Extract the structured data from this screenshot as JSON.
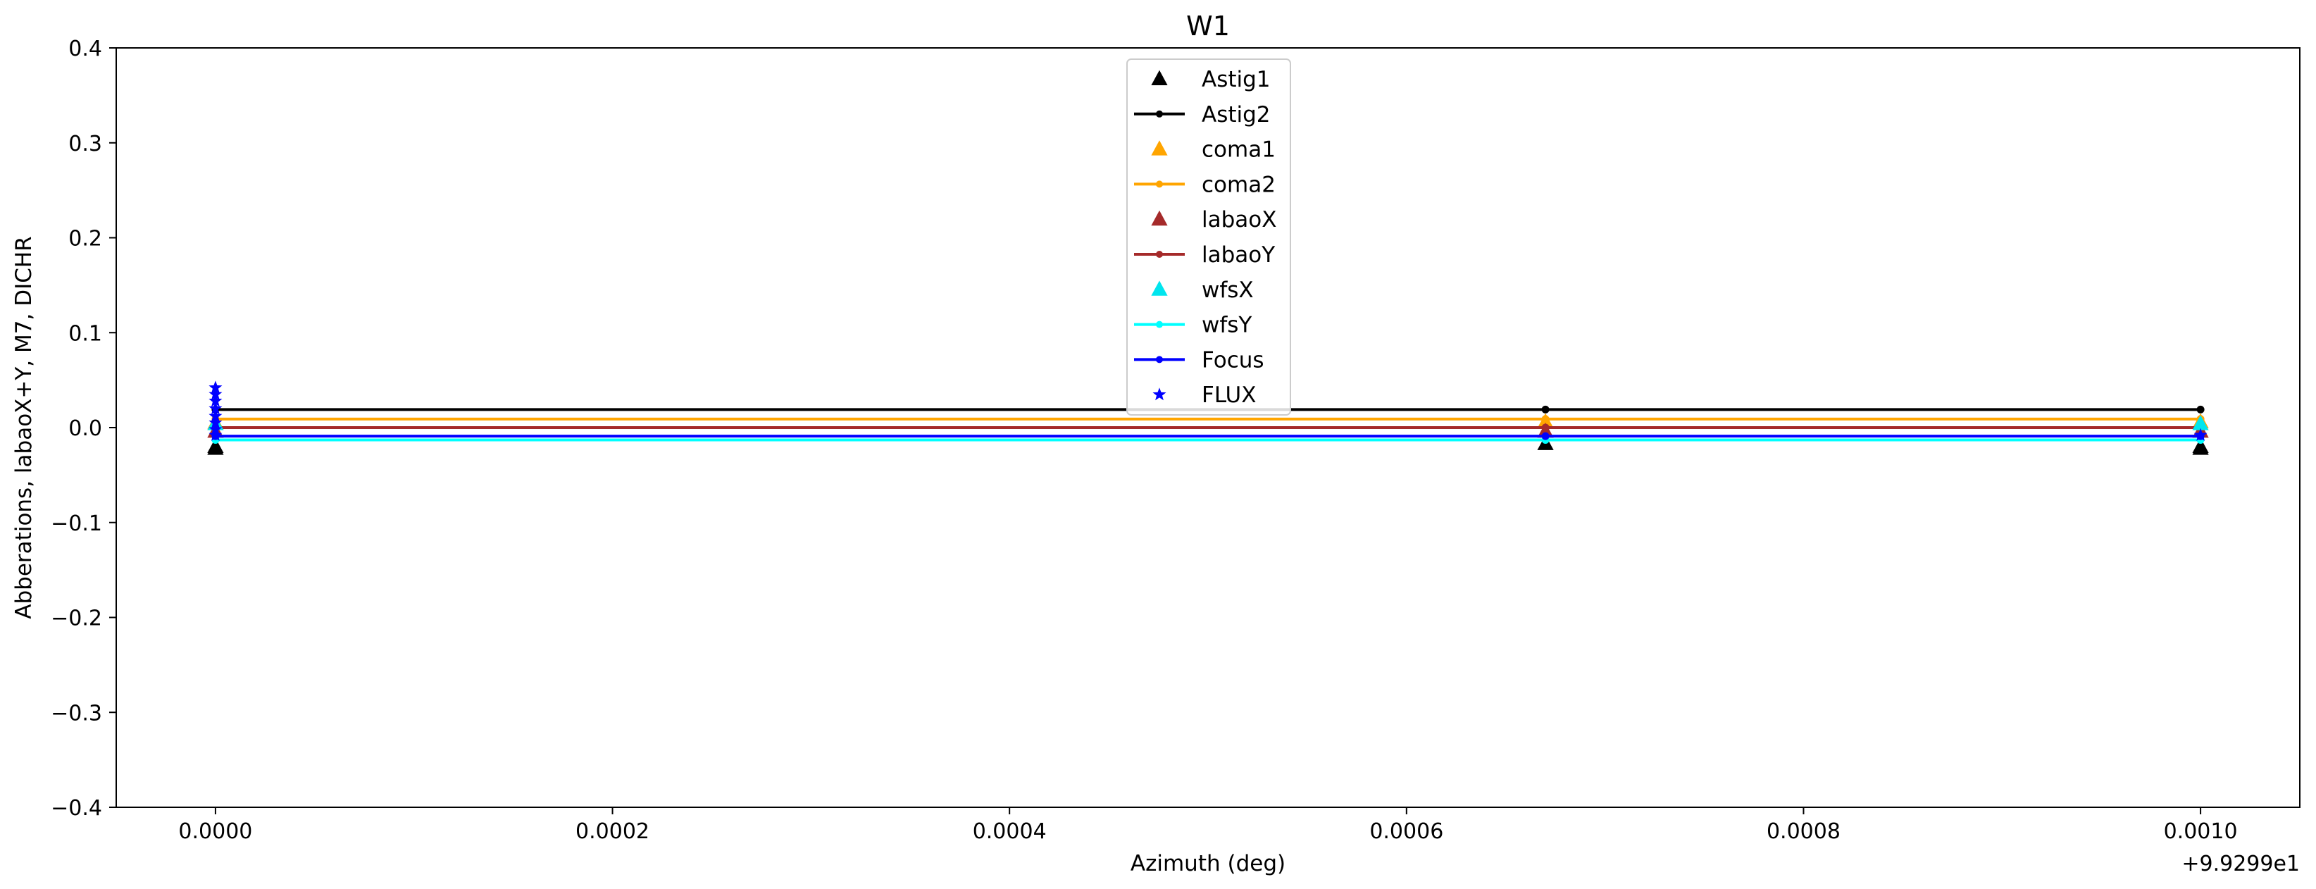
{
  "chart_data": {
    "type": "line",
    "title": "W1",
    "xlabel": "Azimuth (deg)",
    "ylabel": "Abberations, labaoX+Y, M7, DICHR",
    "x_offset_label": "+9.9299e1",
    "xlim": [
      -5e-05,
      0.00105
    ],
    "ylim": [
      -0.4,
      0.4
    ],
    "xticks": [
      0.0,
      0.0002,
      0.0004,
      0.0006,
      0.0008,
      0.001
    ],
    "xtick_labels": [
      "0.0000",
      "0.0002",
      "0.0004",
      "0.0006",
      "0.0008",
      "0.0010"
    ],
    "yticks": [
      -0.4,
      -0.3,
      -0.2,
      -0.1,
      0.0,
      0.1,
      0.2,
      0.3,
      0.4
    ],
    "ytick_labels": [
      "−0.4",
      "−0.3",
      "−0.2",
      "−0.1",
      "0.0",
      "0.1",
      "0.2",
      "0.3",
      "0.4"
    ],
    "legend_position": "upper-center",
    "series": [
      {
        "name": "Astig1",
        "style": "marker",
        "marker": "triangle",
        "color": "#000000",
        "points": [
          [
            0.0,
            -0.022
          ],
          [
            0.0,
            -0.02
          ],
          [
            0.00067,
            -0.017
          ],
          [
            0.001,
            -0.022
          ],
          [
            0.001,
            -0.02
          ]
        ]
      },
      {
        "name": "Astig2",
        "style": "line",
        "marker": "dot",
        "color": "#000000",
        "points": [
          [
            0.0,
            0.019
          ],
          [
            0.00067,
            0.019
          ],
          [
            0.001,
            0.019
          ]
        ]
      },
      {
        "name": "coma1",
        "style": "marker",
        "marker": "triangle",
        "color": "#FFA500",
        "points": [
          [
            0.0,
            0.005
          ],
          [
            0.00067,
            0.006
          ],
          [
            0.001,
            0.006
          ]
        ]
      },
      {
        "name": "coma2",
        "style": "line",
        "marker": "dot",
        "color": "#FFA500",
        "points": [
          [
            0.0,
            0.009
          ],
          [
            0.00067,
            0.009
          ],
          [
            0.001,
            0.009
          ]
        ]
      },
      {
        "name": "labaoX",
        "style": "marker",
        "marker": "triangle",
        "color": "#A52A2A",
        "points": [
          [
            0.0,
            -0.004
          ],
          [
            0.00067,
            -0.004
          ],
          [
            0.001,
            -0.004
          ]
        ]
      },
      {
        "name": "labaoY",
        "style": "line",
        "marker": "dot",
        "color": "#A52A2A",
        "points": [
          [
            0.0,
            0.0
          ],
          [
            0.00067,
            0.0
          ],
          [
            0.001,
            0.0
          ]
        ]
      },
      {
        "name": "wfsX",
        "style": "marker",
        "marker": "triangle",
        "color": "#00E5EE",
        "points": [
          [
            0.0,
            0.004
          ],
          [
            0.001,
            0.004
          ]
        ]
      },
      {
        "name": "wfsY",
        "style": "line",
        "marker": "dot",
        "color": "#00FFFF",
        "points": [
          [
            0.0,
            -0.013
          ],
          [
            0.00067,
            -0.013
          ],
          [
            0.001,
            -0.013
          ]
        ]
      },
      {
        "name": "Focus",
        "style": "line",
        "marker": "dot",
        "color": "#0000FF",
        "points": [
          [
            0.0,
            -0.009
          ],
          [
            0.00067,
            -0.009
          ],
          [
            0.001,
            -0.009
          ]
        ]
      },
      {
        "name": "FLUX",
        "style": "marker",
        "marker": "star",
        "color": "#0000FF",
        "points": [
          [
            0.0,
            0.042
          ],
          [
            0.0,
            0.035
          ],
          [
            0.0,
            0.028
          ],
          [
            0.0,
            0.02
          ],
          [
            0.0,
            0.012
          ],
          [
            0.0,
            0.005
          ],
          [
            0.0,
            -0.002
          ],
          [
            0.0,
            -0.008
          ],
          [
            0.001,
            -0.008
          ]
        ]
      }
    ]
  }
}
